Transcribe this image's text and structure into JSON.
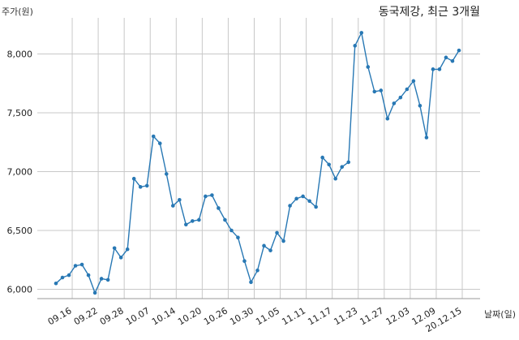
{
  "chart_data": {
    "type": "line",
    "title": "동국제강, 최근 3개월",
    "ylabel": "주가(원)",
    "xlabel": "날짜(일)",
    "ylim": [
      5850,
      8300
    ],
    "yticks": [
      6000,
      6500,
      7000,
      7500,
      8000
    ],
    "ytick_labels": [
      "6,000",
      "6,500",
      "7,000",
      "7,500",
      "8,000"
    ],
    "xtick_labels": [
      "09.16",
      "09.22",
      "09.28",
      "10.07",
      "10.14",
      "10.20",
      "10.26",
      "10.30",
      "11.05",
      "11.11",
      "11.17",
      "11.23",
      "11.27",
      "12.03",
      "12.09",
      "20.12.15"
    ],
    "xtick_positions": [
      2.5,
      6.5,
      10.5,
      14.5,
      18.5,
      22.5,
      26.5,
      30.5,
      34.5,
      38.5,
      42.5,
      46.5,
      50.5,
      54.5,
      58.5,
      62.5
    ],
    "grid": true,
    "color": "#2878b4",
    "values": [
      6050,
      6100,
      6120,
      6200,
      6210,
      6120,
      5970,
      6090,
      6080,
      6350,
      6270,
      6340,
      6940,
      6870,
      6880,
      7300,
      7240,
      6980,
      6710,
      6760,
      6550,
      6580,
      6590,
      6790,
      6800,
      6690,
      6590,
      6500,
      6440,
      6240,
      6060,
      6160,
      6370,
      6330,
      6480,
      6410,
      6710,
      6770,
      6790,
      6750,
      6700,
      7120,
      7060,
      6940,
      7040,
      7080,
      8070,
      8180,
      7890,
      7680,
      7690,
      7450,
      7580,
      7630,
      7700,
      7770,
      7560,
      7290,
      7870,
      7870,
      7970,
      7940,
      8030
    ]
  }
}
